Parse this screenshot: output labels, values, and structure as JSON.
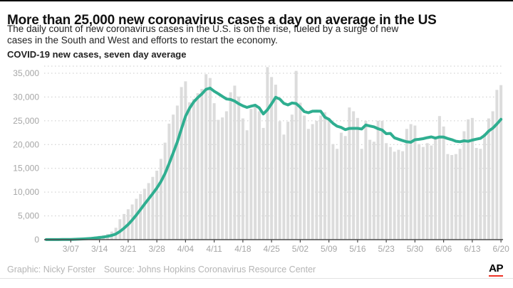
{
  "page": {
    "title": "More than 25,000 new coronavirus cases a day on average in the US",
    "subtitle": {
      "lines": [
        "The daily count of new coronavirus cases in the U.S. is on the rise, fueled by a surge of new",
        "cases in the South and West and efforts to restart the economy."
      ]
    },
    "footer": {
      "credit": "Graphic: Nicky Forster",
      "source": "Source: Johns Hopkins Coronavirus Resource Center"
    },
    "logo_text": "AP",
    "logo_accent_color": "#ee3224"
  },
  "chart_data": {
    "type": "bar",
    "title": "COVID-19 new cases, seven day average",
    "x_start_date": "2020-03-01",
    "x_end_date": "2020-06-20",
    "x_cadence": "daily",
    "x_tick_labels": [
      "3/07",
      "3/14",
      "3/21",
      "3/28",
      "4/04",
      "4/11",
      "4/18",
      "4/25",
      "5/02",
      "5/09",
      "5/16",
      "5/23",
      "5/30",
      "6/06",
      "6/13",
      "6/20"
    ],
    "x_tick_indices": [
      6,
      13,
      20,
      27,
      34,
      41,
      48,
      55,
      62,
      69,
      76,
      83,
      90,
      97,
      104,
      111
    ],
    "y_ticks": [
      0,
      5000,
      10000,
      15000,
      20000,
      25000,
      30000,
      35000
    ],
    "y_tick_labels": [
      "0",
      "5,000",
      "10,000",
      "15,000",
      "20,000",
      "25,000",
      "30,000",
      "35,000"
    ],
    "ylim": [
      0,
      36500
    ],
    "grid": "dashed horizontal",
    "series": [
      {
        "name": "daily new cases",
        "type": "bar",
        "values": [
          10,
          15,
          20,
          30,
          50,
          80,
          120,
          180,
          250,
          330,
          420,
          520,
          650,
          800,
          950,
          1200,
          1700,
          2500,
          4300,
          5400,
          6400,
          7400,
          8600,
          9600,
          10700,
          11900,
          13200,
          14500,
          17000,
          20400,
          24400,
          26300,
          28200,
          32100,
          33300,
          28900,
          29600,
          30800,
          31700,
          34800,
          34000,
          28700,
          25200,
          25700,
          27000,
          31000,
          32400,
          30100,
          25500,
          23000,
          27500,
          28500,
          27000,
          23500,
          36300,
          34200,
          32600,
          24900,
          22100,
          24800,
          26300,
          35500,
          28800,
          26100,
          23300,
          24300,
          25000,
          26100,
          26800,
          25600,
          20100,
          19100,
          22500,
          21800,
          27800,
          27000,
          25600,
          19100,
          25000,
          21000,
          20600,
          25000,
          25000,
          20300,
          19500,
          18500,
          18900,
          18600,
          23300,
          24300,
          24000,
          20100,
          19500,
          20300,
          19800,
          21500,
          26000,
          23800,
          18000,
          17800,
          18000,
          19100,
          22800,
          25300,
          25600,
          19300,
          19100,
          22300,
          25500,
          27000,
          31500,
          32500
        ]
      },
      {
        "name": "seven day average",
        "type": "line",
        "derivation": "trailing 7-day mean of daily new cases values",
        "end_value_approx": 25300,
        "peak_value_approx": 31200
      }
    ],
    "style": {
      "bar_color": "#dcdcdc",
      "line_color": "#2fae90",
      "grid_color": "#c9c9c9",
      "axis_color": "#4a4a4a",
      "tick_label_color": "#a6a6a6"
    }
  }
}
